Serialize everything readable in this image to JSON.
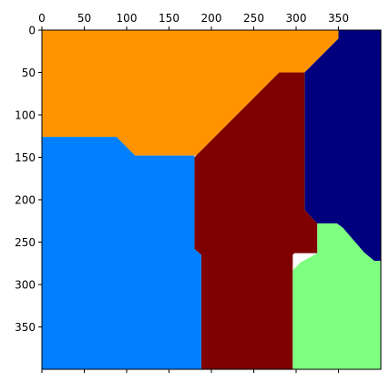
{
  "chart_data": {
    "type": "heatmap",
    "title": "",
    "xlabel": "",
    "ylabel": "",
    "xlim": [
      0,
      400
    ],
    "ylim": [
      400,
      0
    ],
    "x_axis_position": "top",
    "x_ticks": [
      0,
      50,
      100,
      150,
      200,
      250,
      300,
      350
    ],
    "y_ticks": [
      0,
      50,
      100,
      150,
      200,
      250,
      300,
      350
    ],
    "grid": false,
    "legend": "none",
    "regions": [
      {
        "id": "orange-region",
        "color": "#ff9400",
        "polygon": [
          [
            0,
            0
          ],
          [
            350,
            0
          ],
          [
            350,
            10
          ],
          [
            310,
            50
          ],
          [
            280,
            50
          ],
          [
            182,
            148
          ],
          [
            110,
            148
          ],
          [
            88,
            126
          ],
          [
            0,
            126
          ]
        ]
      },
      {
        "id": "navy-region",
        "color": "#00007f",
        "polygon": [
          [
            350,
            0
          ],
          [
            400,
            0
          ],
          [
            400,
            272
          ],
          [
            392,
            272
          ],
          [
            380,
            262
          ],
          [
            355,
            233
          ],
          [
            348,
            228
          ],
          [
            325,
            228
          ],
          [
            320,
            223
          ],
          [
            310,
            212
          ],
          [
            310,
            50
          ],
          [
            350,
            10
          ]
        ]
      },
      {
        "id": "darkred-region",
        "color": "#7f0000",
        "polygon": [
          [
            280,
            50
          ],
          [
            310,
            50
          ],
          [
            310,
            212
          ],
          [
            320,
            223
          ],
          [
            325,
            228
          ],
          [
            325,
            263
          ],
          [
            298,
            263
          ],
          [
            296,
            265
          ],
          [
            296,
            400
          ],
          [
            188,
            400
          ],
          [
            188,
            265
          ],
          [
            180,
            258
          ],
          [
            180,
            150
          ]
        ]
      },
      {
        "id": "blue-region",
        "color": "#007fff",
        "polygon": [
          [
            0,
            126
          ],
          [
            88,
            126
          ],
          [
            110,
            148
          ],
          [
            180,
            148
          ],
          [
            180,
            258
          ],
          [
            188,
            265
          ],
          [
            188,
            400
          ],
          [
            0,
            400
          ]
        ]
      },
      {
        "id": "lightgreen-region",
        "color": "#7fff7f",
        "polygon": [
          [
            325,
            228
          ],
          [
            348,
            228
          ],
          [
            355,
            233
          ],
          [
            380,
            262
          ],
          [
            392,
            272
          ],
          [
            400,
            272
          ],
          [
            400,
            400
          ],
          [
            296,
            400
          ],
          [
            296,
            283
          ],
          [
            305,
            274
          ],
          [
            325,
            263
          ]
        ]
      }
    ]
  }
}
